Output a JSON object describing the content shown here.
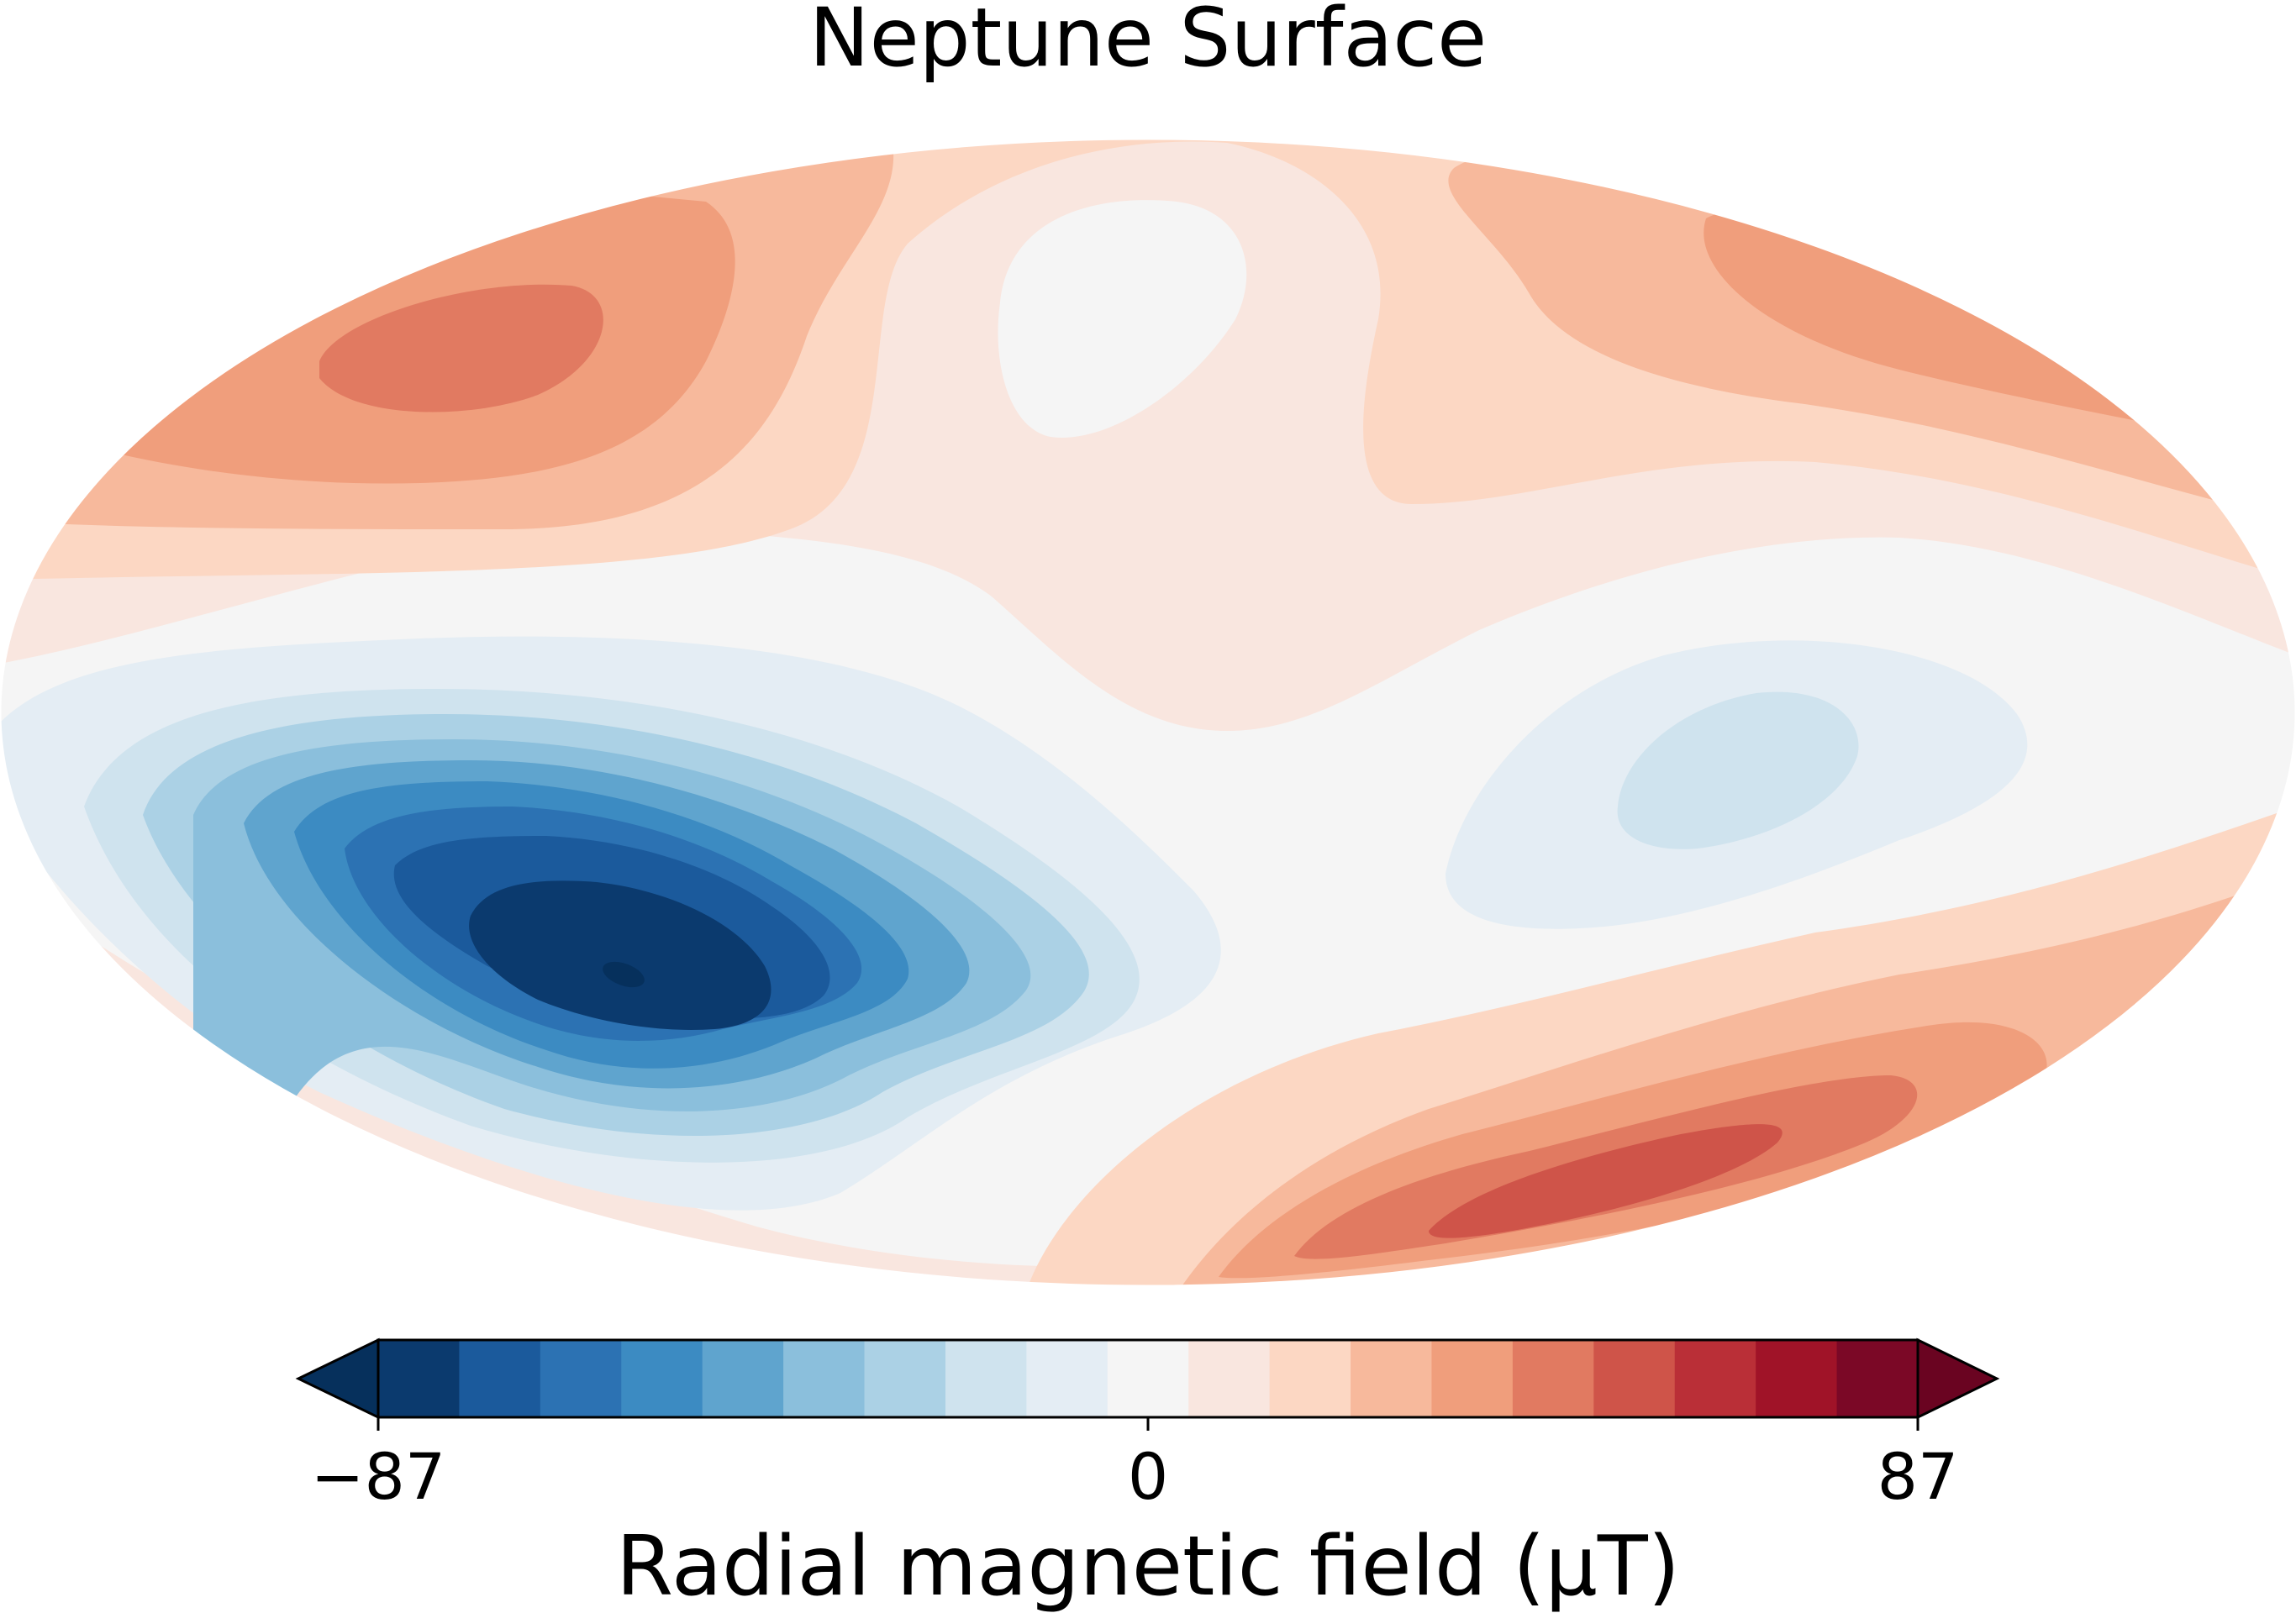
{
  "chart_data": {
    "type": "heatmap",
    "title": "Neptune  Surface",
    "projection": "mollweide",
    "colormap": "RdBu_r (diverging blue-white-red)",
    "colorbar": {
      "label": "Radial magnetic field (μT)",
      "vmin": -87,
      "vmax": 87,
      "ticks": [
        {
          "value": -87,
          "label": "−87"
        },
        {
          "value": 0,
          "label": "0"
        },
        {
          "value": 87,
          "label": "87"
        }
      ],
      "extend": "both",
      "levels": 19,
      "colors": [
        "#0b3a6e",
        "#1b5a9c",
        "#2c72b3",
        "#3c8bc2",
        "#5fa4ce",
        "#8bbfdc",
        "#abd1e5",
        "#cfe3ee",
        "#e4edf4",
        "#f5f5f5",
        "#f9e6df",
        "#fcd7c3",
        "#f7b99c",
        "#f09e7c",
        "#e17a61",
        "#cf5449",
        "#ba2f37",
        "#a01328",
        "#7b0826"
      ],
      "extend_colors": {
        "under": "#06305c",
        "over": "#6a0421"
      }
    },
    "features": [
      {
        "kind": "minimum",
        "sign": "negative",
        "value_approx": -87,
        "region": "southern hemisphere, western longitudes"
      },
      {
        "kind": "maximum",
        "sign": "positive",
        "value_approx": 45,
        "region": "southern hemisphere, eastern longitudes"
      },
      {
        "kind": "maximum",
        "sign": "positive",
        "value_approx": 35,
        "region": "northern hemisphere, western longitudes"
      },
      {
        "kind": "maximum",
        "sign": "positive",
        "value_approx": 25,
        "region": "northern hemisphere, eastern longitudes"
      },
      {
        "kind": "minimum",
        "sign": "negative",
        "value_approx": -15,
        "region": "near equator, eastern longitudes"
      }
    ]
  }
}
